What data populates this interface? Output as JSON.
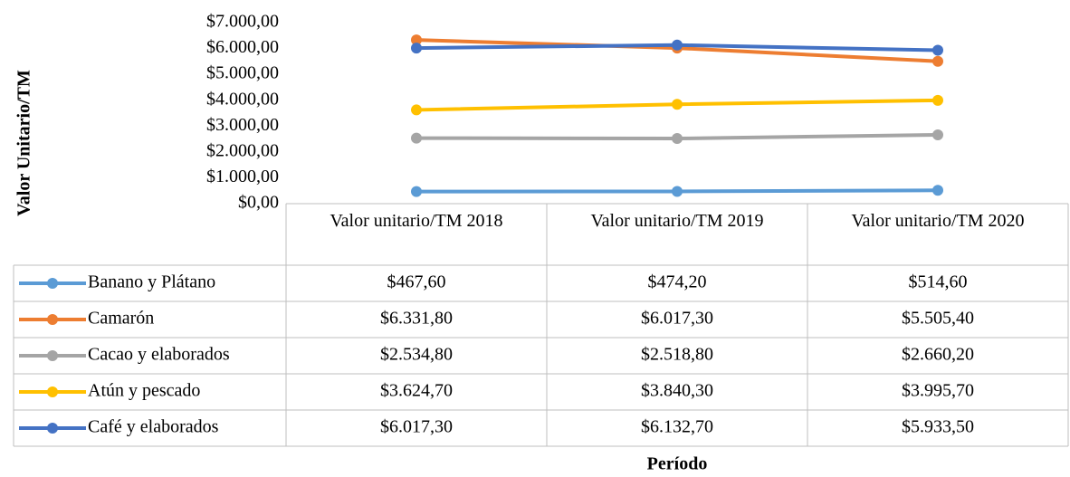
{
  "chart_data": {
    "type": "line",
    "y_label": "Valor  Unitario/TM",
    "x_label": "Período",
    "categories": [
      "Valor unitario/TM 2018",
      "Valor unitario/TM 2019",
      "Valor unitario/TM 2020"
    ],
    "ylim": [
      0,
      7000
    ],
    "yticks": [
      {
        "value": 0,
        "label": "$0,00"
      },
      {
        "value": 1000,
        "label": "$1.000,00"
      },
      {
        "value": 2000,
        "label": "$2.000,00"
      },
      {
        "value": 3000,
        "label": "$3.000,00"
      },
      {
        "value": 4000,
        "label": "$4.000,00"
      },
      {
        "value": 5000,
        "label": "$5.000,00"
      },
      {
        "value": 6000,
        "label": "$6.000,00"
      },
      {
        "value": 7000,
        "label": "$7.000,00"
      }
    ],
    "grid": false,
    "series": [
      {
        "name": "Banano y Plátano",
        "color": "#5b9bd5",
        "values": [
          467.6,
          474.2,
          514.6
        ],
        "value_labels": [
          "$467,60",
          "$474,20",
          "$514,60"
        ]
      },
      {
        "name": "Camarón",
        "color": "#ed7d31",
        "values": [
          6331.8,
          6017.3,
          5505.4
        ],
        "value_labels": [
          "$6.331,80",
          "$6.017,30",
          "$5.505,40"
        ]
      },
      {
        "name": "Cacao y elaborados",
        "color": "#a5a5a5",
        "values": [
          2534.8,
          2518.8,
          2660.2
        ],
        "value_labels": [
          "$2.534,80",
          "$2.518,80",
          "$2.660,20"
        ]
      },
      {
        "name": "Atún y pescado",
        "color": "#ffc000",
        "values": [
          3624.7,
          3840.3,
          3995.7
        ],
        "value_labels": [
          "$3.624,70",
          "$3.840,30",
          "$3.995,70"
        ]
      },
      {
        "name": "Café y elaborados",
        "color": "#4472c4",
        "values": [
          6017.3,
          6132.7,
          5933.5
        ],
        "value_labels": [
          "$6.017,30",
          "$6.132,70",
          "$5.933,50"
        ]
      }
    ]
  }
}
